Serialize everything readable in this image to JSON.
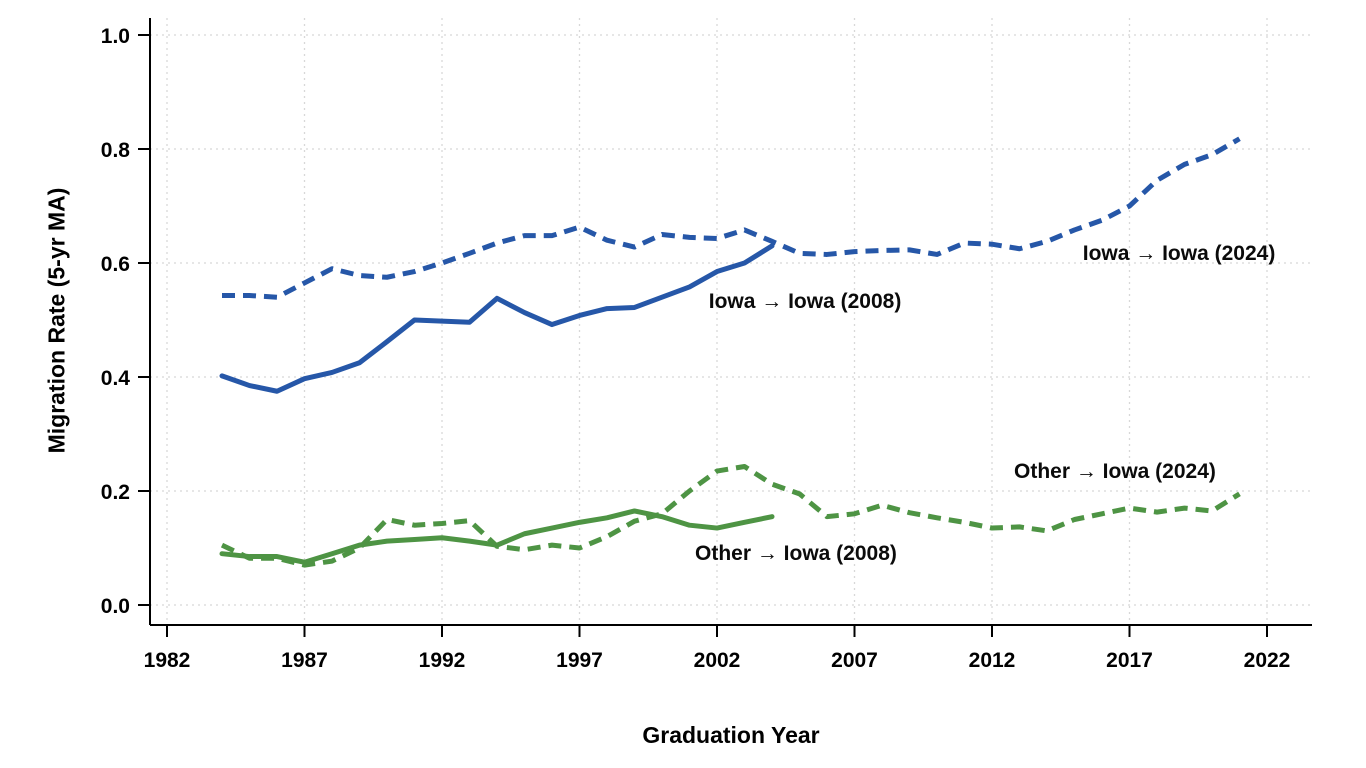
{
  "figure": {
    "background": "#ffffff"
  },
  "chart_data": {
    "type": "line",
    "title": "",
    "xlabel": "Graduation Year",
    "ylabel": "Migration Rate  (5-yr MA)",
    "xlim": [
      1982,
      2022
    ],
    "ylim": [
      0.0,
      1.0
    ],
    "x_ticks": [
      1982,
      1987,
      1992,
      1997,
      2002,
      2007,
      2012,
      2017,
      2022
    ],
    "y_ticks": [
      0.0,
      0.2,
      0.4,
      0.6,
      0.8,
      1.0
    ],
    "grid": {
      "show": true,
      "style": "dashed",
      "color": "#d8d8d8"
    },
    "legend_position": "inline-annotations",
    "colors": {
      "iowa_blue": "#2657a8",
      "other_green": "#4e9444"
    },
    "series": [
      {
        "name": "Iowa → Iowa (2024)",
        "color": "#2657a8",
        "line_style": "dashed",
        "line_width": 5,
        "x_start": 1984,
        "x_step": 1,
        "values": [
          0.543,
          0.543,
          0.54,
          0.565,
          0.59,
          0.578,
          0.575,
          0.585,
          0.6,
          0.617,
          0.635,
          0.648,
          0.648,
          0.663,
          0.64,
          0.628,
          0.65,
          0.645,
          0.643,
          0.658,
          0.638,
          0.617,
          0.615,
          0.62,
          0.622,
          0.623,
          0.615,
          0.635,
          0.633,
          0.625,
          0.638,
          0.658,
          0.675,
          0.7,
          0.745,
          0.773,
          0.79,
          0.818
        ]
      },
      {
        "name": "Iowa → Iowa (2008)",
        "color": "#2657a8",
        "line_style": "solid",
        "line_width": 5,
        "x_start": 1984,
        "x_step": 1,
        "values": [
          0.402,
          0.385,
          0.375,
          0.397,
          0.408,
          0.425,
          0.462,
          0.5,
          0.498,
          0.496,
          0.538,
          0.513,
          0.492,
          0.508,
          0.52,
          0.522,
          0.54,
          0.558,
          0.585,
          0.6,
          0.63
        ]
      },
      {
        "name": "Other → Iowa (2024)",
        "color": "#4e9444",
        "line_style": "dashed",
        "line_width": 5,
        "x_start": 1984,
        "x_step": 1,
        "values": [
          0.105,
          0.082,
          0.082,
          0.07,
          0.077,
          0.1,
          0.15,
          0.14,
          0.143,
          0.148,
          0.103,
          0.097,
          0.105,
          0.1,
          0.12,
          0.147,
          0.16,
          0.2,
          0.235,
          0.243,
          0.212,
          0.195,
          0.155,
          0.16,
          0.175,
          0.162,
          0.153,
          0.145,
          0.135,
          0.137,
          0.13,
          0.15,
          0.16,
          0.17,
          0.163,
          0.17,
          0.165,
          0.195
        ]
      },
      {
        "name": "Other → Iowa (2008)",
        "color": "#4e9444",
        "line_style": "solid",
        "line_width": 5,
        "x_start": 1984,
        "x_step": 1,
        "values": [
          0.09,
          0.085,
          0.085,
          0.075,
          0.09,
          0.105,
          0.112,
          0.115,
          0.118,
          0.112,
          0.105,
          0.125,
          0.135,
          0.145,
          0.153,
          0.165,
          0.155,
          0.14,
          0.135,
          0.145,
          0.155
        ]
      }
    ],
    "annotations": [
      {
        "text": "Iowa → Iowa (2008)",
        "x": 2001.7,
        "y": 0.535
      },
      {
        "text": "Iowa → Iowa (2024)",
        "x": 2015.3,
        "y": 0.619
      },
      {
        "text": "Other → Iowa (2024)",
        "x": 2012.8,
        "y": 0.237
      },
      {
        "text": "Other → Iowa (2008)",
        "x": 2001.2,
        "y": 0.093
      }
    ]
  }
}
